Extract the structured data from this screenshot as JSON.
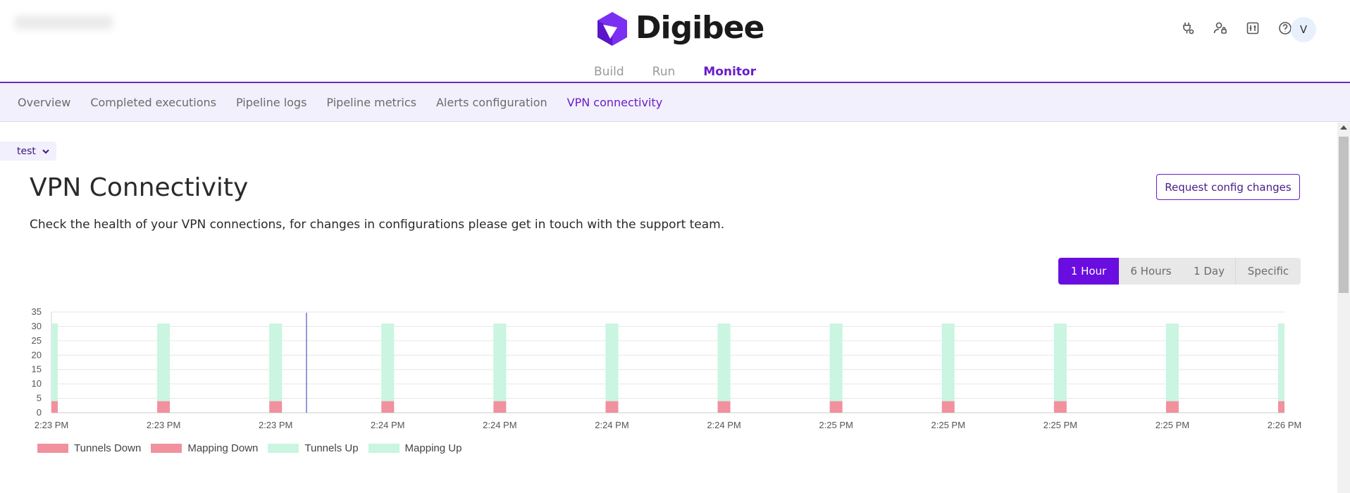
{
  "brand": {
    "name": "Digibee",
    "accent": "#6a1cc9",
    "logo_color": "#7b2ff2"
  },
  "header": {
    "icons": [
      "plug-settings-icon",
      "user-lock-icon",
      "panel-icon",
      "help-icon"
    ],
    "avatar_initial": "V",
    "main_tabs": [
      {
        "label": "Build",
        "active": false
      },
      {
        "label": "Run",
        "active": false
      },
      {
        "label": "Monitor",
        "active": true
      }
    ]
  },
  "subnav": {
    "items": [
      {
        "label": "Overview",
        "active": false
      },
      {
        "label": "Completed executions",
        "active": false
      },
      {
        "label": "Pipeline logs",
        "active": false
      },
      {
        "label": "Pipeline metrics",
        "active": false
      },
      {
        "label": "Alerts configuration",
        "active": false
      },
      {
        "label": "VPN connectivity",
        "active": true
      }
    ]
  },
  "environment": {
    "selected": "test"
  },
  "page": {
    "title": "VPN Connectivity",
    "description": "Check the health of your VPN connections, for changes in configurations please get in touch with the support team.",
    "request_button": "Request config changes"
  },
  "time_range": {
    "options": [
      "1 Hour",
      "6 Hours",
      "1 Day",
      "Specific"
    ],
    "selected": "1 Hour"
  },
  "chart_data": {
    "type": "bar",
    "categories": [
      "2:23 PM",
      "2:23 PM",
      "2:23 PM",
      "2:24 PM",
      "2:24 PM",
      "2:24 PM",
      "2:24 PM",
      "2:25 PM",
      "2:25 PM",
      "2:25 PM",
      "2:25 PM",
      "2:26 PM"
    ],
    "x_ticks": [
      "2:23 PM",
      "2:23 PM",
      "2:23 PM",
      "2:24 PM",
      "2:24 PM",
      "2:24 PM",
      "2:24 PM",
      "2:25 PM",
      "2:25 PM",
      "2:25 PM",
      "2:25 PM",
      "2:26 PM"
    ],
    "series": [
      {
        "name": "Tunnels Down",
        "color": "#f0919d",
        "values": [
          4,
          4,
          4,
          4,
          4,
          4,
          4,
          4,
          4,
          4,
          4,
          4
        ]
      },
      {
        "name": "Mapping Down",
        "color": "#f0919d",
        "values": [
          0,
          0,
          0,
          0,
          0,
          0,
          0,
          0,
          0,
          0,
          0,
          0
        ]
      },
      {
        "name": "Tunnels Up",
        "color": "#c9f5e1",
        "values": [
          31,
          31,
          31,
          31,
          31,
          31,
          31,
          31,
          31,
          31,
          31,
          31
        ]
      },
      {
        "name": "Mapping Up",
        "color": "#c9f5e1",
        "values": [
          31,
          31,
          31,
          31,
          31,
          31,
          31,
          31,
          31,
          31,
          31,
          31
        ]
      }
    ],
    "y_ticks": [
      0,
      5,
      10,
      15,
      20,
      25,
      30,
      35
    ],
    "ylim": [
      0,
      35
    ],
    "grid": true,
    "legend": "bottom-left"
  }
}
